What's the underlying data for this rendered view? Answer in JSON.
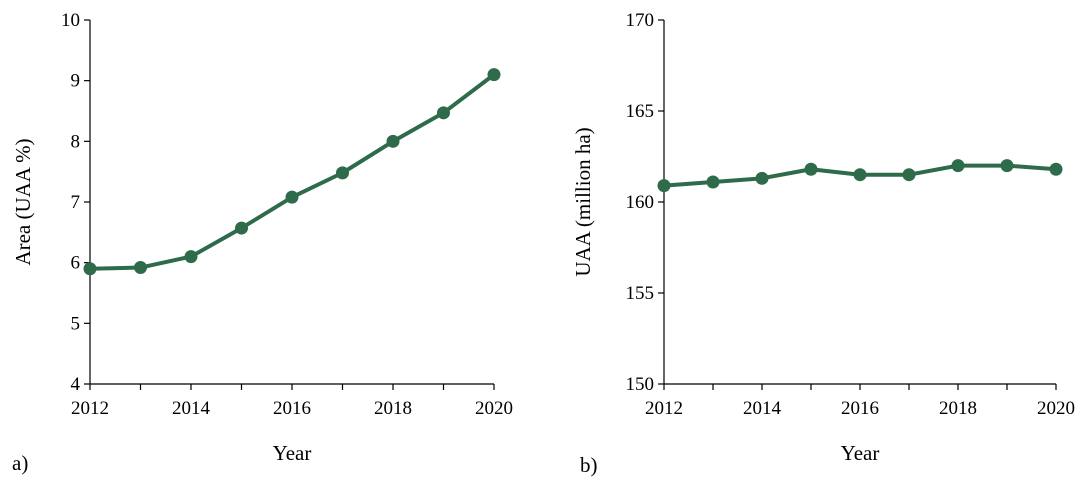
{
  "colors": {
    "series": "#2e6b4a",
    "axis": "#000000",
    "background": "#ffffff"
  },
  "chart_data": [
    {
      "type": "line",
      "panel_label": "a)",
      "title": "",
      "xlabel": "Year",
      "ylabel": "Area (UAA %)",
      "xlim": [
        2012,
        2020
      ],
      "ylim": [
        4,
        10
      ],
      "x_ticks": [
        2012,
        2014,
        2016,
        2018,
        2020
      ],
      "y_ticks": [
        4,
        5,
        6,
        7,
        8,
        9,
        10
      ],
      "grid": false,
      "legend": "none",
      "x": [
        2012,
        2013,
        2014,
        2015,
        2016,
        2017,
        2018,
        2019,
        2020
      ],
      "series": [
        {
          "values": [
            5.9,
            5.92,
            6.1,
            6.57,
            7.08,
            7.48,
            8.0,
            8.47,
            9.1
          ]
        }
      ]
    },
    {
      "type": "line",
      "panel_label": "b)",
      "title": "",
      "xlabel": "Year",
      "ylabel": "UAA (million ha)",
      "xlim": [
        2012,
        2020
      ],
      "ylim": [
        150,
        170
      ],
      "x_ticks": [
        2012,
        2014,
        2016,
        2018,
        2020
      ],
      "y_ticks": [
        150,
        155,
        160,
        165,
        170
      ],
      "grid": false,
      "legend": "none",
      "x": [
        2012,
        2013,
        2014,
        2015,
        2016,
        2017,
        2018,
        2019,
        2020
      ],
      "series": [
        {
          "values": [
            160.9,
            161.1,
            161.3,
            161.8,
            161.5,
            161.5,
            162.0,
            162.0,
            161.8
          ]
        }
      ]
    }
  ]
}
